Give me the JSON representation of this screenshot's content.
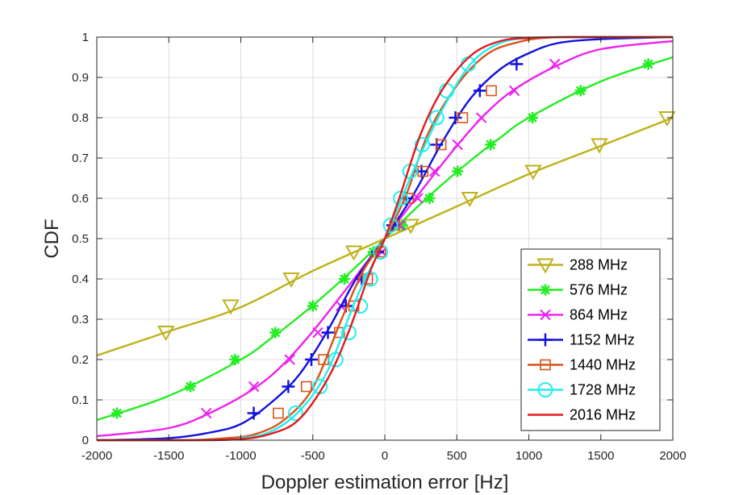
{
  "chart_data": {
    "type": "line",
    "title": "",
    "xlabel": "Doppler estimation error [Hz]",
    "ylabel": "CDF",
    "xlim": [
      -2000,
      2000
    ],
    "ylim": [
      0,
      1
    ],
    "xticks": [
      -2000,
      -1500,
      -1000,
      -500,
      0,
      500,
      1000,
      1500,
      2000
    ],
    "yticks": [
      0,
      0.1,
      0.2,
      0.3,
      0.4,
      0.5,
      0.6,
      0.7,
      0.8,
      0.9,
      1
    ],
    "xtick_labels": [
      "-2000",
      "-1500",
      "-1000",
      "-500",
      "0",
      "500",
      "1000",
      "1500",
      "2000"
    ],
    "ytick_labels": [
      "0",
      "0.1",
      "0.2",
      "0.3",
      "0.4",
      "0.5",
      "0.6",
      "0.7",
      "0.8",
      "0.9",
      "1"
    ],
    "grid": true,
    "legend_position": "bottom-right",
    "series": [
      {
        "name": "288 MHz",
        "color": "#bdb21a",
        "marker": "triangle-down-open",
        "x": [
          -2000,
          -1500,
          -1000,
          -500,
          0,
          500,
          1000,
          1500,
          2000
        ],
        "y": [
          0.21,
          0.27,
          0.33,
          0.42,
          0.5,
          0.58,
          0.66,
          0.73,
          0.8
        ],
        "marker_x": [
          -1520,
          -1070,
          -650,
          -215,
          180,
          590,
          1030,
          1490,
          1960
        ],
        "marker_y": [
          0.268,
          0.333,
          0.4,
          0.467,
          0.533,
          0.6,
          0.667,
          0.733,
          0.8
        ]
      },
      {
        "name": "576 MHz",
        "color": "#22ee22",
        "marker": "asterisk",
        "x": [
          -2000,
          -1500,
          -1000,
          -800,
          -600,
          -400,
          -200,
          0,
          200,
          400,
          600,
          800,
          1000,
          1500,
          2000
        ],
        "y": [
          0.05,
          0.11,
          0.2,
          0.25,
          0.305,
          0.365,
          0.43,
          0.5,
          0.57,
          0.635,
          0.695,
          0.75,
          0.8,
          0.89,
          0.95
        ],
        "marker_x": [
          -1860,
          -1350,
          -1040,
          -760,
          -500,
          -280,
          -80,
          120,
          310,
          505,
          735,
          1025,
          1360,
          1830
        ],
        "marker_y": [
          0.067,
          0.133,
          0.2,
          0.267,
          0.333,
          0.4,
          0.467,
          0.533,
          0.6,
          0.667,
          0.733,
          0.8,
          0.867,
          0.933
        ]
      },
      {
        "name": "864 MHz",
        "color": "#ee22ee",
        "marker": "x",
        "x": [
          -2000,
          -1500,
          -1200,
          -900,
          -700,
          -500,
          -300,
          -150,
          0,
          150,
          300,
          500,
          700,
          900,
          1200,
          1500,
          2000
        ],
        "y": [
          0.01,
          0.03,
          0.07,
          0.13,
          0.19,
          0.27,
          0.36,
          0.43,
          0.5,
          0.57,
          0.64,
          0.73,
          0.81,
          0.87,
          0.93,
          0.97,
          0.99
        ],
        "marker_x": [
          -1240,
          -910,
          -660,
          -465,
          -305,
          -160,
          -20,
          105,
          230,
          345,
          505,
          670,
          900,
          1180
        ],
        "marker_y": [
          0.067,
          0.133,
          0.2,
          0.267,
          0.333,
          0.4,
          0.467,
          0.533,
          0.6,
          0.667,
          0.733,
          0.8,
          0.867,
          0.933
        ]
      },
      {
        "name": "1152 MHz",
        "color": "#1111dd",
        "marker": "plus",
        "x": [
          -2000,
          -1500,
          -1200,
          -1000,
          -800,
          -600,
          -400,
          -200,
          0,
          200,
          400,
          600,
          800,
          1000,
          1200,
          1500,
          2000
        ],
        "y": [
          0.0,
          0.005,
          0.02,
          0.04,
          0.09,
          0.16,
          0.27,
          0.4,
          0.5,
          0.61,
          0.74,
          0.85,
          0.92,
          0.96,
          0.985,
          0.995,
          1.0
        ],
        "marker_x": [
          -910,
          -670,
          -510,
          -395,
          -270,
          -160,
          -50,
          55,
          150,
          255,
          360,
          490,
          660,
          915
        ],
        "marker_y": [
          0.067,
          0.133,
          0.2,
          0.267,
          0.333,
          0.4,
          0.467,
          0.533,
          0.6,
          0.667,
          0.733,
          0.8,
          0.867,
          0.933
        ]
      },
      {
        "name": "1440 MHz",
        "color": "#d95319",
        "marker": "square-open",
        "x": [
          -2000,
          -1400,
          -1100,
          -900,
          -700,
          -500,
          -300,
          -150,
          0,
          150,
          300,
          500,
          700,
          900,
          1200,
          2000
        ],
        "y": [
          0.0,
          0.0,
          0.005,
          0.015,
          0.05,
          0.13,
          0.3,
          0.42,
          0.5,
          0.61,
          0.76,
          0.88,
          0.955,
          0.985,
          1.0,
          1.0
        ],
        "marker_x": [
          -740,
          -545,
          -425,
          -315,
          -215,
          -120,
          -30,
          70,
          165,
          265,
          390,
          540,
          740
        ],
        "marker_y": [
          0.067,
          0.133,
          0.2,
          0.267,
          0.333,
          0.4,
          0.467,
          0.533,
          0.6,
          0.667,
          0.733,
          0.8,
          0.867
        ]
      },
      {
        "name": "1728 MHz",
        "color": "#22eeee",
        "marker": "circle-open",
        "x": [
          -2000,
          -1200,
          -1000,
          -800,
          -600,
          -400,
          -200,
          0,
          200,
          400,
          600,
          800,
          1000,
          1200,
          2000
        ],
        "y": [
          0.0,
          0.0,
          0.005,
          0.02,
          0.07,
          0.17,
          0.35,
          0.5,
          0.67,
          0.82,
          0.935,
          0.985,
          0.998,
          1.0,
          1.0
        ],
        "marker_x": [
          -620,
          -450,
          -340,
          -250,
          -170,
          -100,
          -30,
          40,
          110,
          175,
          260,
          360,
          430,
          580
        ],
        "marker_y": [
          0.067,
          0.133,
          0.2,
          0.267,
          0.333,
          0.4,
          0.467,
          0.533,
          0.6,
          0.667,
          0.733,
          0.8,
          0.867,
          0.933
        ]
      },
      {
        "name": "2016 MHz",
        "color": "#e31a1c",
        "marker": "none",
        "x": [
          -2000,
          -1300,
          -1000,
          -800,
          -600,
          -400,
          -250,
          -100,
          0,
          100,
          250,
          400,
          600,
          800,
          1000,
          1300,
          2000
        ],
        "y": [
          0.0,
          0.0,
          0.003,
          0.015,
          0.05,
          0.15,
          0.27,
          0.42,
          0.5,
          0.6,
          0.76,
          0.87,
          0.955,
          0.99,
          0.998,
          1.0,
          1.0
        ],
        "marker_x": [],
        "marker_y": []
      }
    ]
  }
}
